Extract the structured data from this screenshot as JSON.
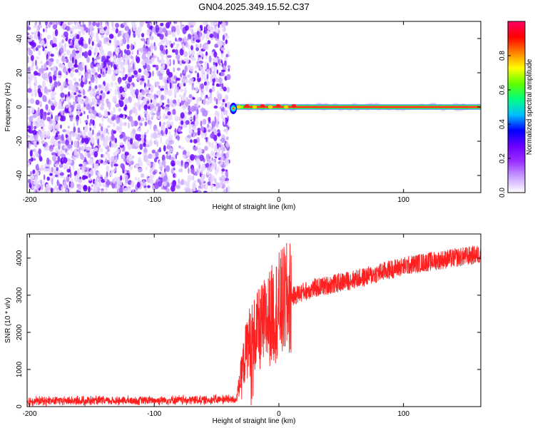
{
  "figure": {
    "title": "GN04.2025.349.15.52.C37"
  },
  "chart_data": [
    {
      "type": "heatmap",
      "xlabel": "Height of straight line (km)",
      "ylabel": "Frequency (Hz)",
      "xlim": [
        -202,
        162
      ],
      "ylim": [
        -50,
        50
      ],
      "xticks": [
        -200,
        -100,
        0,
        100
      ],
      "xtick_labels": [
        "-200",
        "-100",
        "0",
        "100"
      ],
      "yticks": [
        -40,
        -20,
        0,
        20,
        40
      ],
      "ytick_labels": [
        "-40",
        "-20",
        "0",
        "20",
        "40"
      ],
      "noise_region_x": [
        -202,
        -40
      ],
      "signal_ridge": {
        "x_start": -40,
        "x_end": 162,
        "frequency_hz": 0
      },
      "grid": false,
      "colorbar": {
        "label": "Normalized spectral amplitude",
        "range": [
          0,
          1
        ],
        "ticks": [
          0,
          0.2,
          0.4,
          0.6,
          0.8
        ],
        "tick_labels": [
          "0.0",
          "0.2",
          "0.4",
          "0.6",
          "0.8"
        ],
        "colors": [
          "#ffffff",
          "#c8a0ff",
          "#9a30ff",
          "#6a00ff",
          "#0000ff",
          "#00c0ff",
          "#00ff80",
          "#60ff00",
          "#ffff00",
          "#ff8000",
          "#ff0000",
          "#ff0066"
        ]
      }
    },
    {
      "type": "line",
      "xlabel": "Height of straight line (km)",
      "ylabel": "SNR (10 * v/v)",
      "xlim": [
        -202,
        162
      ],
      "ylim": [
        0,
        4650
      ],
      "xticks": [
        -200,
        -100,
        0,
        100
      ],
      "xtick_labels": [
        "-200",
        "-100",
        "0",
        "100"
      ],
      "yticks": [
        0,
        1000,
        2000,
        3000,
        4000
      ],
      "ytick_labels": [
        "0",
        "1000",
        "2000",
        "3000",
        "4000"
      ],
      "grid": false,
      "series_color": "#ff2020",
      "envelope": {
        "x": [
          -202,
          -120,
          -60,
          -34,
          -30,
          -27,
          -25,
          -20,
          -15,
          -10,
          -5,
          0,
          10,
          20,
          30,
          50,
          70,
          90,
          110,
          130,
          150,
          162
        ],
        "y": [
          150,
          160,
          180,
          200,
          900,
          1400,
          1700,
          1900,
          2100,
          2300,
          2500,
          2700,
          2950,
          3100,
          3200,
          3350,
          3500,
          3700,
          3850,
          3950,
          4050,
          4100
        ]
      }
    }
  ]
}
